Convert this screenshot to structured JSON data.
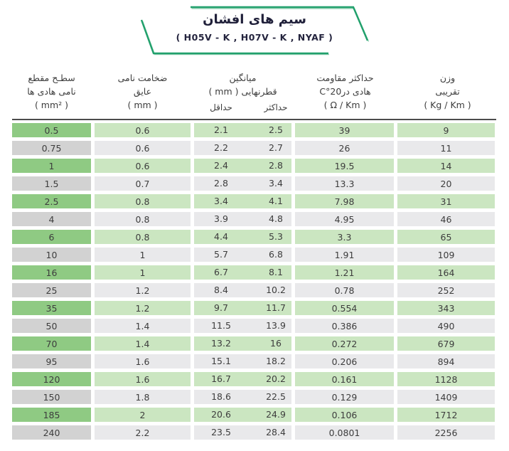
{
  "banner": {
    "title": "سیم های افشان",
    "subtitle": "( H05V - K , H07V - K , NYAF )",
    "accent_color": "#21a06c",
    "accent_light": "#93d1b4"
  },
  "table": {
    "columns": [
      {
        "id": "cross-section",
        "lines": [
          "سطـح مقطع",
          "نامی هادی ها",
          "( mm² )"
        ]
      },
      {
        "id": "insulation-thickness",
        "lines": [
          "ضخامت نامی",
          "عایق",
          "( mm )"
        ]
      },
      {
        "id": "mean-overall-diameter",
        "lines": [
          "میانگین",
          "قطرنهایی ( mm )"
        ],
        "sub": [
          "حداقل",
          "حداکثر"
        ]
      },
      {
        "id": "max-conductor-resistance",
        "lines": [
          "حداکثر مقاومت",
          "هادی در20°C",
          "( Ω / Km )"
        ]
      },
      {
        "id": "approx-weight",
        "lines": [
          "وزن",
          "تقریبی",
          "( Kg / Km )"
        ]
      }
    ],
    "rows": [
      [
        "0.5",
        "0.6",
        "2.1",
        "2.5",
        "39",
        "9"
      ],
      [
        "0.75",
        "0.6",
        "2.2",
        "2.7",
        "26",
        "11"
      ],
      [
        "1",
        "0.6",
        "2.4",
        "2.8",
        "19.5",
        "14"
      ],
      [
        "1.5",
        "0.7",
        "2.8",
        "3.4",
        "13.3",
        "20"
      ],
      [
        "2.5",
        "0.8",
        "3.4",
        "4.1",
        "7.98",
        "31"
      ],
      [
        "4",
        "0.8",
        "3.9",
        "4.8",
        "4.95",
        "46"
      ],
      [
        "6",
        "0.8",
        "4.4",
        "5.3",
        "3.3",
        "65"
      ],
      [
        "10",
        "1",
        "5.7",
        "6.8",
        "1.91",
        "109"
      ],
      [
        "16",
        "1",
        "6.7",
        "8.1",
        "1.21",
        "164"
      ],
      [
        "25",
        "1.2",
        "8.4",
        "10.2",
        "0.78",
        "252"
      ],
      [
        "35",
        "1.2",
        "9.7",
        "11.7",
        "0.554",
        "343"
      ],
      [
        "50",
        "1.4",
        "11.5",
        "13.9",
        "0.386",
        "490"
      ],
      [
        "70",
        "1.4",
        "13.2",
        "16",
        "0.272",
        "679"
      ],
      [
        "95",
        "1.6",
        "15.1",
        "18.2",
        "0.206",
        "894"
      ],
      [
        "120",
        "1.6",
        "16.7",
        "20.2",
        "0.161",
        "1128"
      ],
      [
        "150",
        "1.8",
        "18.6",
        "22.5",
        "0.129",
        "1409"
      ],
      [
        "185",
        "2",
        "20.6",
        "24.9",
        "0.106",
        "1712"
      ],
      [
        "240",
        "2.2",
        "23.5",
        "28.4",
        "0.0801",
        "2256"
      ]
    ],
    "colors": {
      "green_row_first_cell": "#8fca83",
      "green_row": "#cbe6c1",
      "gray_row_first_cell": "#d2d2d2",
      "gray_row": "#e9e9eb",
      "text": "#3d3d3d",
      "header_rule": "#4c4c4c"
    }
  }
}
